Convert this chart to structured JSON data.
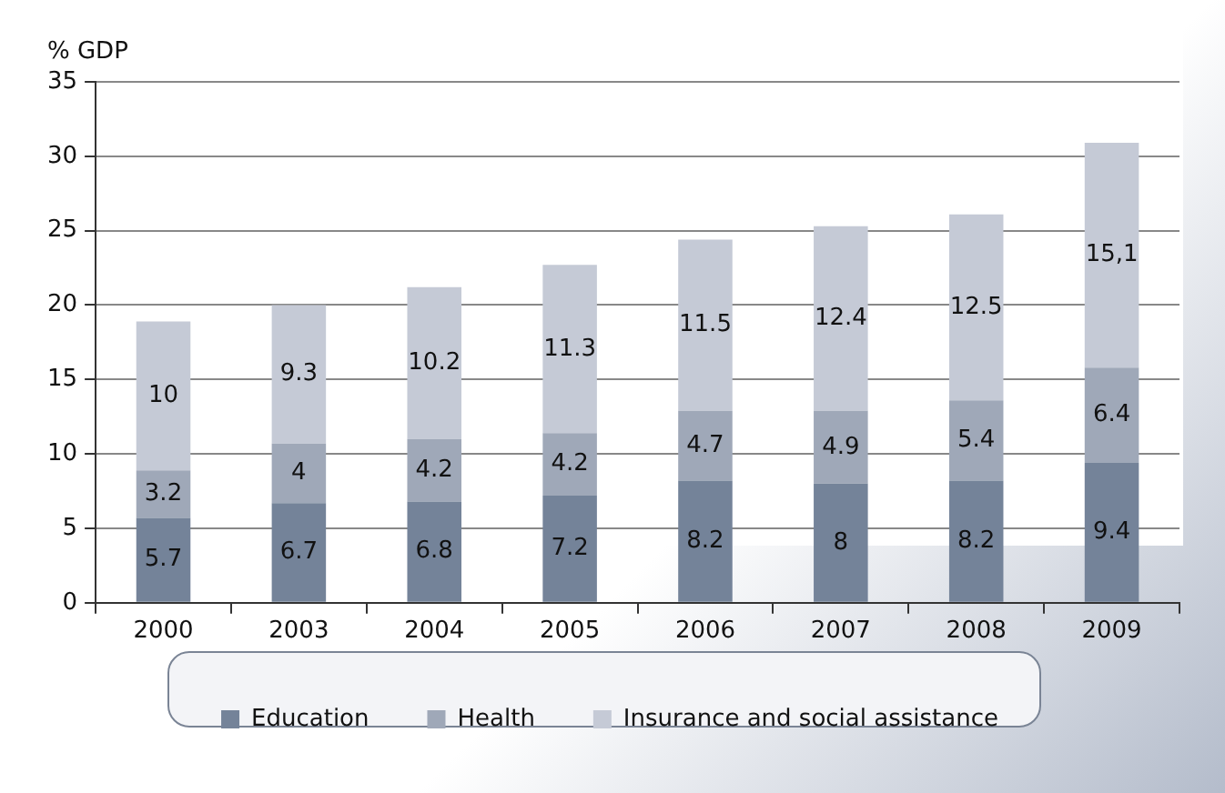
{
  "chart_data": {
    "type": "bar",
    "stacked": true,
    "ylabel": "% GDP",
    "categories": [
      "2000",
      "2003",
      "2004",
      "2005",
      "2006",
      "2007",
      "2008",
      "2009"
    ],
    "series": [
      {
        "name": "Education",
        "color": "#748399",
        "values": [
          5.7,
          6.7,
          6.8,
          7.2,
          8.2,
          8,
          8.2,
          9.4
        ],
        "value_labels": [
          "5.7",
          "6.7",
          "6.8",
          "7.2",
          "8.2",
          "8",
          "8.2",
          "9.4"
        ]
      },
      {
        "name": "Health",
        "color": "#9fa8b8",
        "values": [
          3.2,
          4,
          4.2,
          4.2,
          4.7,
          4.9,
          5.4,
          6.4
        ],
        "value_labels": [
          "3.2",
          "4",
          "4.2",
          "4.2",
          "4.7",
          "4.9",
          "5.4",
          "6.4"
        ]
      },
      {
        "name": "Insurance and social assistance",
        "color": "#c5cad6",
        "values": [
          10,
          9.3,
          10.2,
          11.3,
          11.5,
          12.4,
          12.5,
          15.1
        ],
        "value_labels": [
          "10",
          "9.3",
          "10.2",
          "11.3",
          "11.5",
          "12.4",
          "12.5",
          "15,1"
        ]
      }
    ],
    "ylim": [
      0,
      35
    ],
    "yticks": [
      0,
      5,
      10,
      15,
      20,
      25,
      30,
      35
    ],
    "grid": "y",
    "legend": "bottom"
  }
}
